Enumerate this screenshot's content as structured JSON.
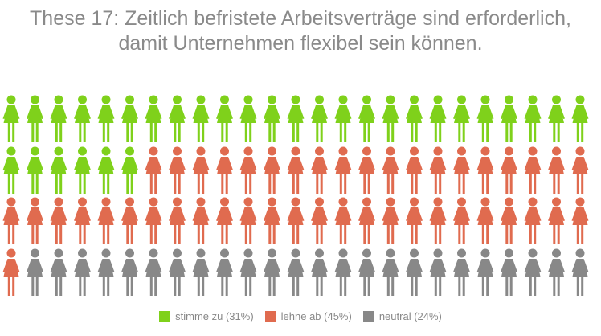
{
  "chart_data": {
    "type": "pictogram",
    "title_lines": [
      "These 17: Zeitlich befristete Arbeitsverträge sind erforderlich,",
      "damit Unternehmen flexibel sein können."
    ],
    "rows": 4,
    "per_row": 25,
    "series": [
      {
        "name": "stimme zu (31%)",
        "value": 31,
        "color": "#7fd11b"
      },
      {
        "name": "lehne ab (45%)",
        "value": 45,
        "color": "#e06b4f"
      },
      {
        "name": "neutral (24%)",
        "value": 24,
        "color": "#888888"
      }
    ],
    "legend_position": "bottom"
  }
}
